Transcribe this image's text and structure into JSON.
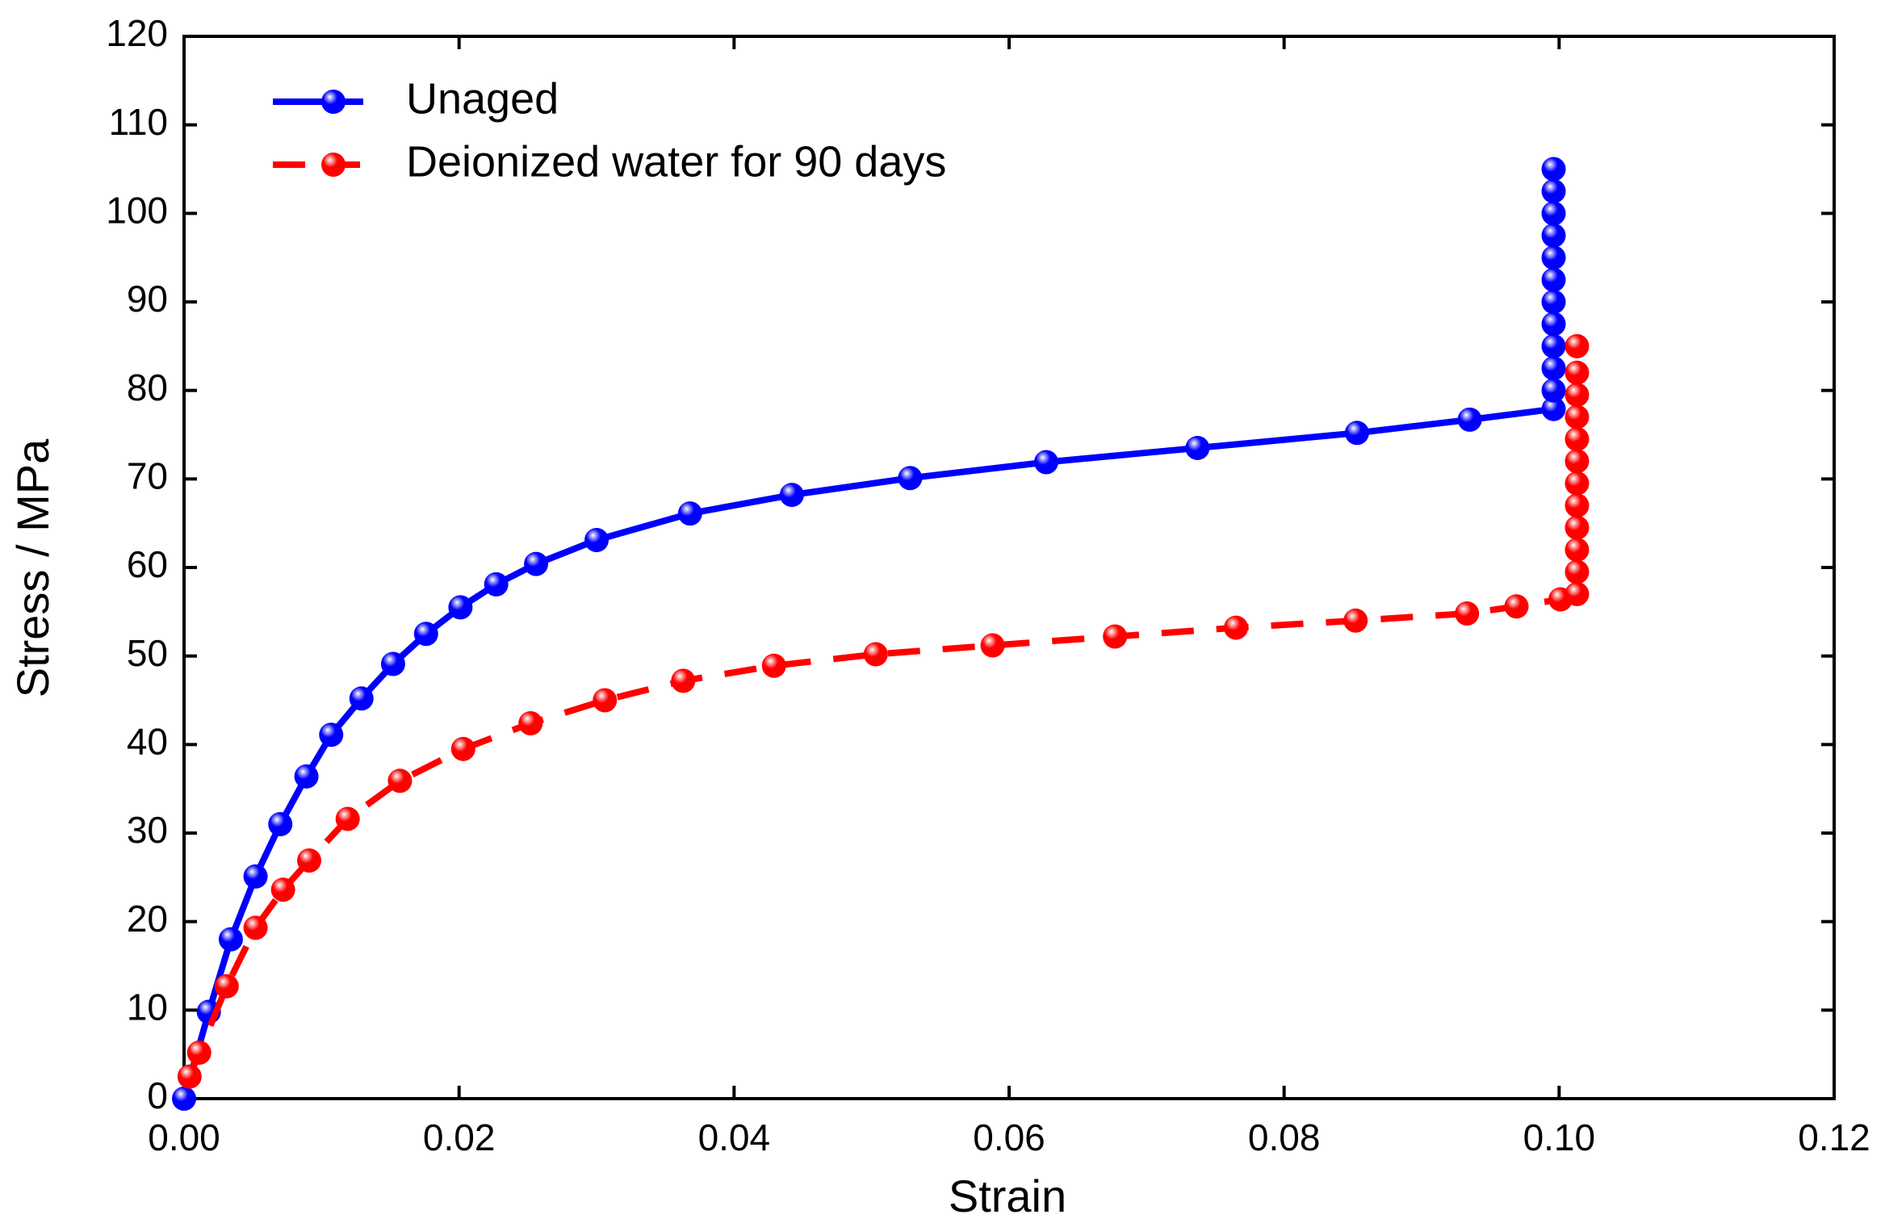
{
  "chart_data": {
    "type": "line",
    "xlabel": "Strain",
    "ylabel": "Stress / MPa",
    "xlim": [
      0,
      0.12
    ],
    "ylim": [
      0,
      120
    ],
    "xticks": [
      {
        "value": 0,
        "label": "0.00"
      },
      {
        "value": 0.02,
        "label": "0.02"
      },
      {
        "value": 0.04,
        "label": "0.04"
      },
      {
        "value": 0.06,
        "label": "0.06"
      },
      {
        "value": 0.08,
        "label": "0.08"
      },
      {
        "value": 0.1,
        "label": "0.10"
      },
      {
        "value": 0.12,
        "label": "0.12"
      }
    ],
    "yticks": [
      0,
      10,
      20,
      30,
      40,
      50,
      60,
      70,
      80,
      90,
      100,
      110,
      120
    ],
    "legend": "upper left",
    "series": [
      {
        "name": "Unaged",
        "color": "#0000ff",
        "linestyle": "solid",
        "x": [
          0,
          0.0018,
          0.0034,
          0.0052,
          0.007,
          0.0089,
          0.0107,
          0.0129,
          0.0152,
          0.0176,
          0.0201,
          0.0227,
          0.0256,
          0.03,
          0.0368,
          0.0442,
          0.0528,
          0.0627,
          0.0737,
          0.0853,
          0.0935,
          0.0996,
          0.0996,
          0.0996,
          0.0996,
          0.0996,
          0.0996,
          0.0996,
          0.0996,
          0.0996,
          0.0996,
          0.0996,
          0.0996
        ],
        "values": [
          0,
          9.8,
          18,
          25.1,
          31,
          36.4,
          41.1,
          45.2,
          49.1,
          52.5,
          55.5,
          58.1,
          60.4,
          63.1,
          66.1,
          68.2,
          70.1,
          71.9,
          73.5,
          75.2,
          76.7,
          77.9,
          80,
          82.5,
          85,
          87.5,
          90,
          92.5,
          95,
          97.5,
          100,
          102.5,
          105
        ]
      },
      {
        "name": "Deionized water for 90 days",
        "color": "#ff0000",
        "linestyle": "dashed",
        "x": [
          0.0004,
          0.0011,
          0.0031,
          0.0052,
          0.0072,
          0.0091,
          0.0119,
          0.0157,
          0.0203,
          0.0252,
          0.0306,
          0.0363,
          0.0429,
          0.0503,
          0.0588,
          0.0677,
          0.0765,
          0.0852,
          0.0933,
          0.0969,
          0.1001,
          0.1013,
          0.1013,
          0.1013,
          0.1013,
          0.1013,
          0.1013,
          0.1013,
          0.1013,
          0.1013,
          0.1013,
          0.1013,
          0.1013
        ],
        "values": [
          2.5,
          5.2,
          12.7,
          19.3,
          23.6,
          26.9,
          31.6,
          35.9,
          39.5,
          42.4,
          45,
          47.2,
          48.9,
          50.2,
          51.2,
          52.2,
          53.2,
          54,
          54.8,
          55.6,
          56.4,
          57,
          59.5,
          62,
          64.5,
          67,
          69.5,
          72,
          74.5,
          77,
          79.5,
          82,
          85
        ]
      }
    ]
  }
}
